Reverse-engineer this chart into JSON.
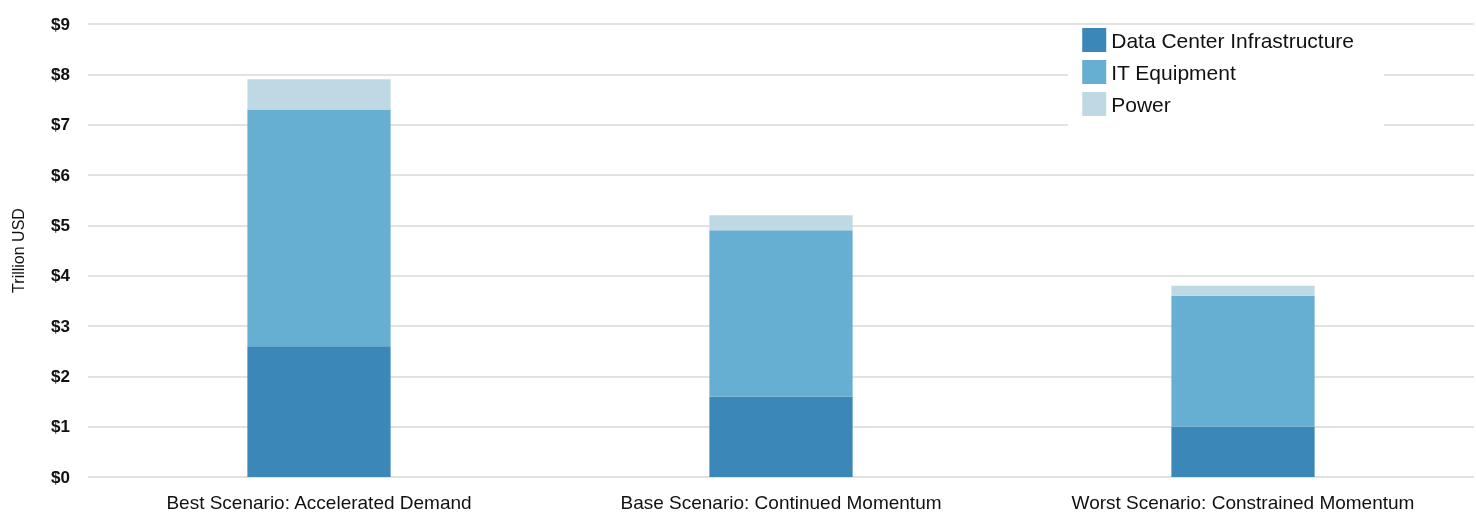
{
  "chart_data": {
    "type": "bar",
    "stacked": true,
    "ylabel": "Trillion USD",
    "categories": [
      "Best Scenario: Accelerated Demand",
      "Base Scenario: Continued Momentum",
      "Worst Scenario: Constrained Momentum"
    ],
    "series": [
      {
        "name": "Data Center Infrastructure",
        "color": "#3a87b8",
        "values": [
          2.6,
          1.6,
          1.0
        ]
      },
      {
        "name": "IT Equipment",
        "color": "#67aed3",
        "values": [
          4.7,
          3.3,
          2.6
        ]
      },
      {
        "name": "Power",
        "color": "#bfd9e4",
        "values": [
          0.6,
          0.3,
          0.2
        ]
      }
    ],
    "ylim": [
      0,
      9
    ],
    "yticks": [
      {
        "value": 0,
        "label": "$0"
      },
      {
        "value": 1,
        "label": "$1"
      },
      {
        "value": 2,
        "label": "$2"
      },
      {
        "value": 3,
        "label": "$3"
      },
      {
        "value": 4,
        "label": "$4"
      },
      {
        "value": 5,
        "label": "$5"
      },
      {
        "value": 6,
        "label": "$6"
      },
      {
        "value": 7,
        "label": "$7"
      },
      {
        "value": 8,
        "label": "$8"
      },
      {
        "value": 9,
        "label": "$9"
      }
    ],
    "grid": "y",
    "legend": "top right"
  }
}
